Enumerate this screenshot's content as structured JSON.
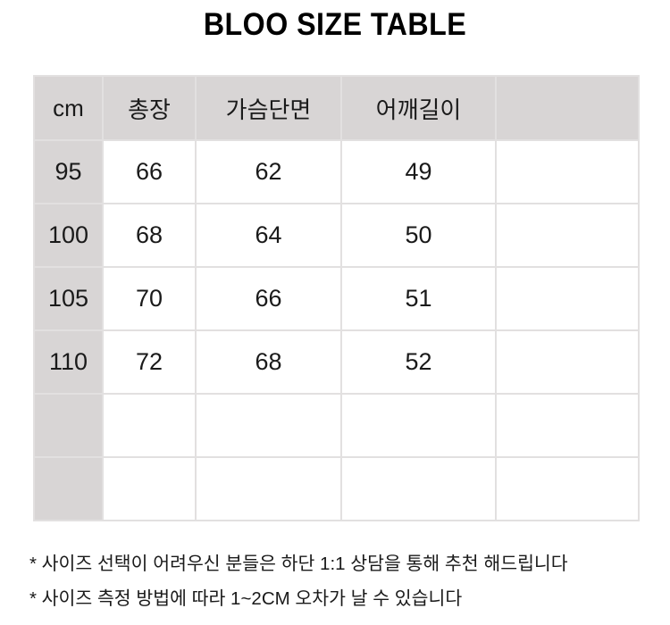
{
  "title": "BLOO SIZE TABLE",
  "table": {
    "headers": [
      "cm",
      "총장",
      "가슴단면",
      "어깨길이",
      ""
    ],
    "rows": [
      [
        "95",
        "66",
        "62",
        "49",
        ""
      ],
      [
        "100",
        "68",
        "64",
        "50",
        ""
      ],
      [
        "105",
        "70",
        "66",
        "51",
        ""
      ],
      [
        "110",
        "72",
        "68",
        "52",
        ""
      ],
      [
        "",
        "",
        "",
        "",
        ""
      ],
      [
        "",
        "",
        "",
        "",
        ""
      ]
    ]
  },
  "notes": [
    "* 사이즈 선택이 어려우신 분들은 하단 1:1 상담을 통해 추천 해드립니다",
    "* 사이즈 측정 방법에 따라 1~2CM 오차가 날 수 있습니다"
  ],
  "colors": {
    "header_bg": "#d8d5d5",
    "border": "#e2e0e0"
  }
}
